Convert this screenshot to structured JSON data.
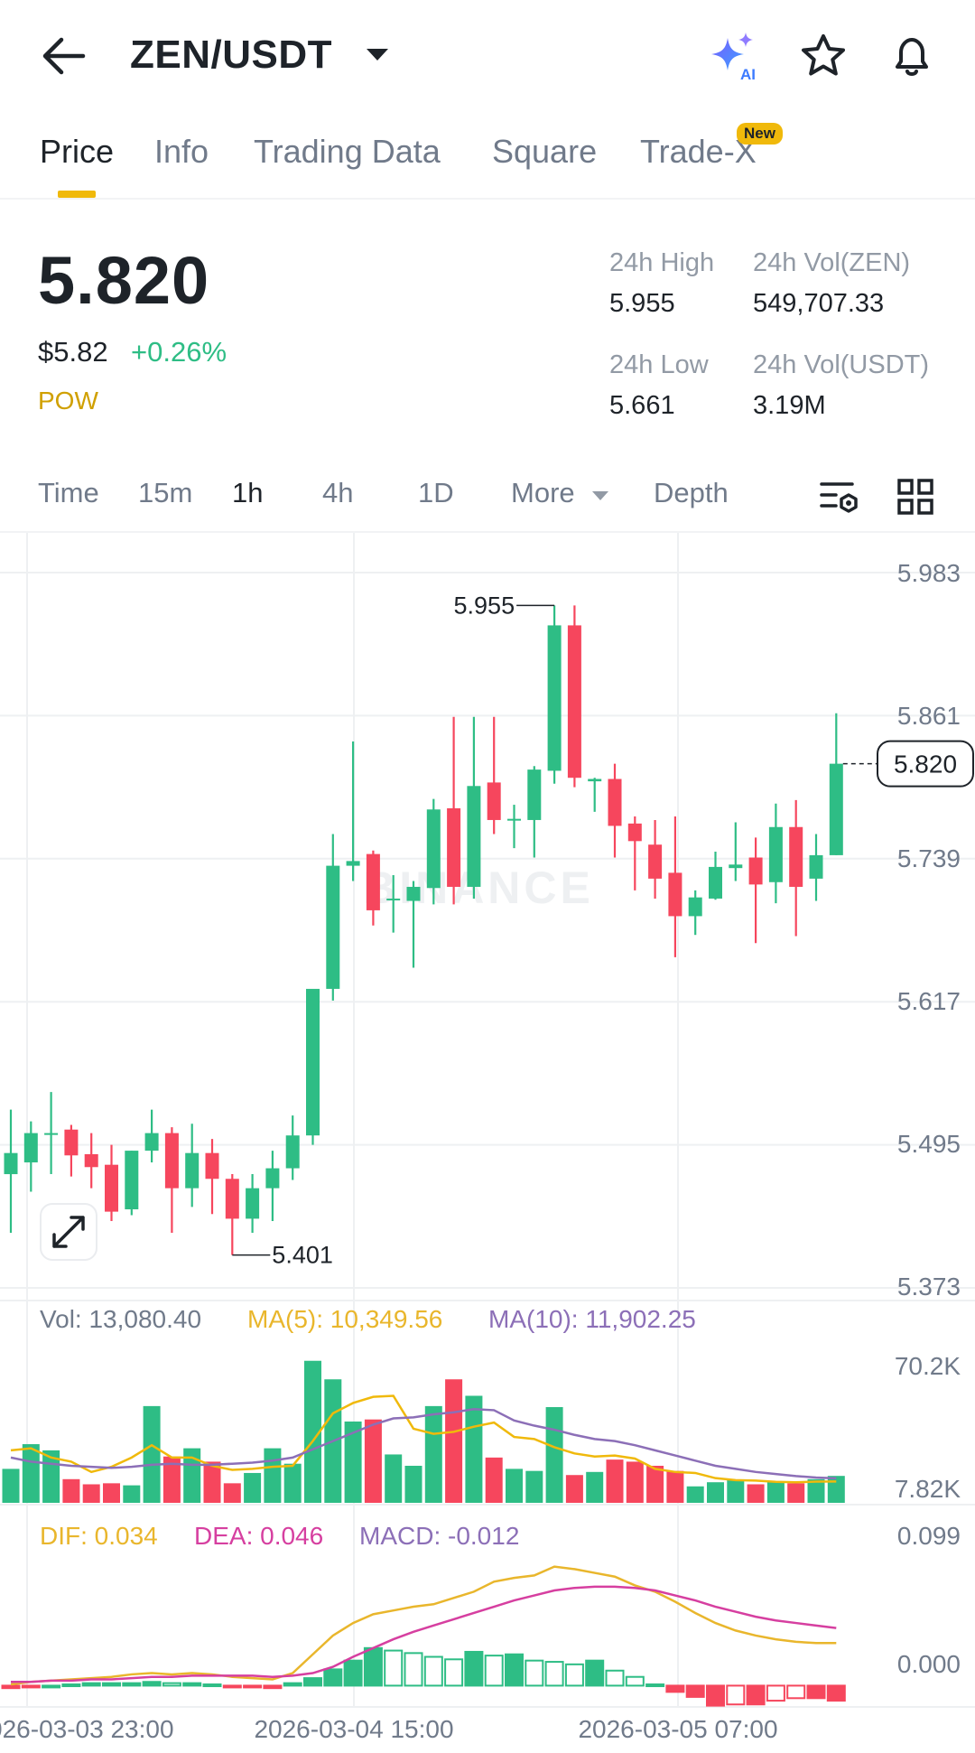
{
  "header": {
    "pair": "ZEN/USDT",
    "icons": [
      "back-arrow-icon",
      "caret-down-icon",
      "ai-sparkle-icon",
      "star-icon",
      "bell-icon"
    ],
    "ai_label": "AI"
  },
  "tabs": [
    {
      "label": "Price",
      "active": true
    },
    {
      "label": "Info"
    },
    {
      "label": "Trading Data"
    },
    {
      "label": "Square"
    },
    {
      "label": "Trade-X",
      "badge": "New"
    }
  ],
  "ticker": {
    "price": "5.820",
    "price_usd": "$5.82",
    "change": "+0.26%",
    "tag": "POW",
    "high_label": "24h High",
    "high": "5.955",
    "vol_base_label": "24h Vol(ZEN)",
    "vol_base": "549,707.33",
    "low_label": "24h Low",
    "low": "5.661",
    "vol_quote_label": "24h Vol(USDT)",
    "vol_quote": "3.19M"
  },
  "intervals": {
    "items": [
      "Time",
      "15m",
      "1h",
      "4h",
      "1D",
      "More",
      "Depth"
    ],
    "active": "1h",
    "icons": [
      "indicator-settings-icon",
      "grid-layout-icon"
    ]
  },
  "colors": {
    "up": "#2ebd85",
    "down": "#f6465d",
    "ma5": "#f0b90b",
    "ma10": "#8c6fb7",
    "dif": "#e9b62c",
    "dea": "#d63fa0",
    "grid": "#eef0f2",
    "axis_text": "#707a8a"
  },
  "chart_data": [
    {
      "type": "candlestick",
      "watermark": "BINANCE",
      "y_ticks": [
        5.983,
        5.861,
        5.739,
        5.617,
        5.495,
        5.373
      ],
      "y_tick_labels": [
        "5.983",
        "5.861",
        "5.739",
        "5.617",
        "5.495",
        "5.373"
      ],
      "ylim": [
        5.373,
        5.983
      ],
      "current_price_label": "5.820",
      "max_label": "5.955",
      "min_label": "5.401",
      "x_labels": [
        "2026-03-03 23:00",
        "2026-03-04 15:00",
        "2026-03-05 07:00"
      ],
      "candles": [
        {
          "o": 5.47,
          "h": 5.525,
          "l": 5.42,
          "c": 5.488
        },
        {
          "o": 5.48,
          "h": 5.515,
          "l": 5.455,
          "c": 5.505
        },
        {
          "o": 5.505,
          "h": 5.54,
          "l": 5.47,
          "c": 5.505
        },
        {
          "o": 5.508,
          "h": 5.512,
          "l": 5.468,
          "c": 5.486
        },
        {
          "o": 5.487,
          "h": 5.505,
          "l": 5.458,
          "c": 5.476
        },
        {
          "o": 5.478,
          "h": 5.495,
          "l": 5.43,
          "c": 5.438
        },
        {
          "o": 5.44,
          "h": 5.49,
          "l": 5.435,
          "c": 5.49
        },
        {
          "o": 5.49,
          "h": 5.525,
          "l": 5.48,
          "c": 5.505
        },
        {
          "o": 5.505,
          "h": 5.51,
          "l": 5.42,
          "c": 5.458
        },
        {
          "o": 5.458,
          "h": 5.513,
          "l": 5.442,
          "c": 5.488
        },
        {
          "o": 5.488,
          "h": 5.5,
          "l": 5.436,
          "c": 5.466
        },
        {
          "o": 5.466,
          "h": 5.47,
          "l": 5.401,
          "c": 5.432
        },
        {
          "o": 5.432,
          "h": 5.47,
          "l": 5.42,
          "c": 5.458
        },
        {
          "o": 5.458,
          "h": 5.49,
          "l": 5.43,
          "c": 5.475
        },
        {
          "o": 5.475,
          "h": 5.52,
          "l": 5.465,
          "c": 5.503
        },
        {
          "o": 5.503,
          "h": 5.627,
          "l": 5.495,
          "c": 5.628
        },
        {
          "o": 5.628,
          "h": 5.76,
          "l": 5.618,
          "c": 5.733
        },
        {
          "o": 5.733,
          "h": 5.839,
          "l": 5.72,
          "c": 5.737
        },
        {
          "o": 5.743,
          "h": 5.746,
          "l": 5.682,
          "c": 5.695
        },
        {
          "o": 5.705,
          "h": 5.725,
          "l": 5.676,
          "c": 5.705
        },
        {
          "o": 5.703,
          "h": 5.72,
          "l": 5.646,
          "c": 5.715
        },
        {
          "o": 5.714,
          "h": 5.79,
          "l": 5.7,
          "c": 5.781
        },
        {
          "o": 5.782,
          "h": 5.86,
          "l": 5.7,
          "c": 5.715
        },
        {
          "o": 5.715,
          "h": 5.86,
          "l": 5.705,
          "c": 5.801
        },
        {
          "o": 5.804,
          "h": 5.86,
          "l": 5.76,
          "c": 5.772
        },
        {
          "o": 5.773,
          "h": 5.785,
          "l": 5.748,
          "c": 5.773
        },
        {
          "o": 5.772,
          "h": 5.818,
          "l": 5.74,
          "c": 5.815
        },
        {
          "o": 5.814,
          "h": 5.955,
          "l": 5.803,
          "c": 5.938
        },
        {
          "o": 5.938,
          "h": 5.955,
          "l": 5.8,
          "c": 5.808
        },
        {
          "o": 5.805,
          "h": 5.808,
          "l": 5.779,
          "c": 5.807
        },
        {
          "o": 5.807,
          "h": 5.82,
          "l": 5.74,
          "c": 5.767
        },
        {
          "o": 5.769,
          "h": 5.775,
          "l": 5.712,
          "c": 5.754
        },
        {
          "o": 5.751,
          "h": 5.772,
          "l": 5.705,
          "c": 5.722
        },
        {
          "o": 5.727,
          "h": 5.775,
          "l": 5.655,
          "c": 5.69
        },
        {
          "o": 5.69,
          "h": 5.712,
          "l": 5.674,
          "c": 5.706
        },
        {
          "o": 5.705,
          "h": 5.745,
          "l": 5.704,
          "c": 5.732
        },
        {
          "o": 5.731,
          "h": 5.77,
          "l": 5.72,
          "c": 5.734
        },
        {
          "o": 5.74,
          "h": 5.757,
          "l": 5.667,
          "c": 5.717
        },
        {
          "o": 5.719,
          "h": 5.786,
          "l": 5.701,
          "c": 5.766
        },
        {
          "o": 5.766,
          "h": 5.789,
          "l": 5.673,
          "c": 5.715
        },
        {
          "o": 5.722,
          "h": 5.76,
          "l": 5.703,
          "c": 5.742
        },
        {
          "o": 5.742,
          "h": 5.863,
          "l": 5.742,
          "c": 5.82
        }
      ]
    },
    {
      "type": "bar",
      "label": "Vol: 13,080.40",
      "ma5_label": "MA(5): 10,349.56",
      "ma10_label": "MA(10): 11,902.25",
      "y_tick_labels": [
        "70.2K",
        "7.82K"
      ],
      "ylim": [
        0,
        70200
      ],
      "values": [
        16500,
        28500,
        25500,
        11500,
        9000,
        9500,
        8500,
        47000,
        22500,
        26500,
        20000,
        9500,
        14500,
        26500,
        19000,
        69000,
        60000,
        39500,
        40500,
        23500,
        18000,
        47000,
        60000,
        52000,
        22000,
        16500,
        15500,
        46500,
        13500,
        15000,
        21000,
        20000,
        18000,
        15500,
        8000,
        10000,
        11000,
        9000,
        10500,
        9500,
        11500,
        13080
      ],
      "ma5": [
        25500,
        26500,
        22000,
        20000,
        15000,
        17500,
        22000,
        28000,
        22000,
        22000,
        18000,
        16000,
        16500,
        17500,
        18000,
        30000,
        43500,
        48500,
        51500,
        52000,
        36000,
        33500,
        34500,
        37000,
        39000,
        32000,
        31000,
        27000,
        24000,
        22500,
        23000,
        21500,
        16500,
        15000,
        14500,
        12000,
        11000,
        10800,
        10200,
        10000,
        10300,
        10349
      ],
      "ma10": [
        22000,
        20000,
        19000,
        18000,
        17500,
        17000,
        17500,
        18500,
        19000,
        18500,
        18500,
        19000,
        19500,
        20500,
        22000,
        26000,
        30000,
        34000,
        38000,
        41000,
        41500,
        43000,
        44000,
        45500,
        45000,
        40000,
        37500,
        35500,
        33000,
        31000,
        30000,
        28000,
        25500,
        23000,
        20500,
        18000,
        16500,
        15000,
        14000,
        13000,
        12300,
        11902
      ]
    },
    {
      "type": "bar",
      "dif_label": "DIF: 0.034",
      "dea_label": "DEA: 0.046",
      "macd_label": "MACD: -0.012",
      "y_tick_labels": [
        "0.099",
        "0.000"
      ],
      "ylim": [
        -0.017,
        0.107
      ],
      "hist": [
        -0.002,
        -0.001,
        0.0,
        0.001,
        0.002,
        0.002,
        0.002,
        0.003,
        0.002,
        0.002,
        0.001,
        -0.001,
        -0.001,
        -0.002,
        0.002,
        0.006,
        0.013,
        0.02,
        0.03,
        0.028,
        0.026,
        0.023,
        0.021,
        0.027,
        0.024,
        0.025,
        0.02,
        0.019,
        0.017,
        0.02,
        0.012,
        0.007,
        0.001,
        -0.005,
        -0.009,
        -0.016,
        -0.015,
        -0.015,
        -0.012,
        -0.01,
        -0.01,
        -0.012
      ],
      "dif": [
        0.001,
        0.003,
        0.004,
        0.005,
        0.006,
        0.007,
        0.009,
        0.01,
        0.009,
        0.01,
        0.009,
        0.007,
        0.006,
        0.005,
        0.01,
        0.025,
        0.04,
        0.05,
        0.057,
        0.06,
        0.063,
        0.065,
        0.07,
        0.075,
        0.083,
        0.086,
        0.088,
        0.095,
        0.093,
        0.09,
        0.087,
        0.08,
        0.075,
        0.067,
        0.058,
        0.05,
        0.044,
        0.04,
        0.037,
        0.035,
        0.034,
        0.034
      ],
      "dea": [
        0.003,
        0.003,
        0.004,
        0.004,
        0.005,
        0.005,
        0.006,
        0.007,
        0.007,
        0.008,
        0.008,
        0.008,
        0.008,
        0.007,
        0.008,
        0.01,
        0.015,
        0.023,
        0.03,
        0.037,
        0.043,
        0.048,
        0.053,
        0.058,
        0.063,
        0.068,
        0.072,
        0.076,
        0.078,
        0.079,
        0.079,
        0.078,
        0.076,
        0.072,
        0.068,
        0.063,
        0.059,
        0.055,
        0.052,
        0.05,
        0.048,
        0.046
      ]
    }
  ]
}
